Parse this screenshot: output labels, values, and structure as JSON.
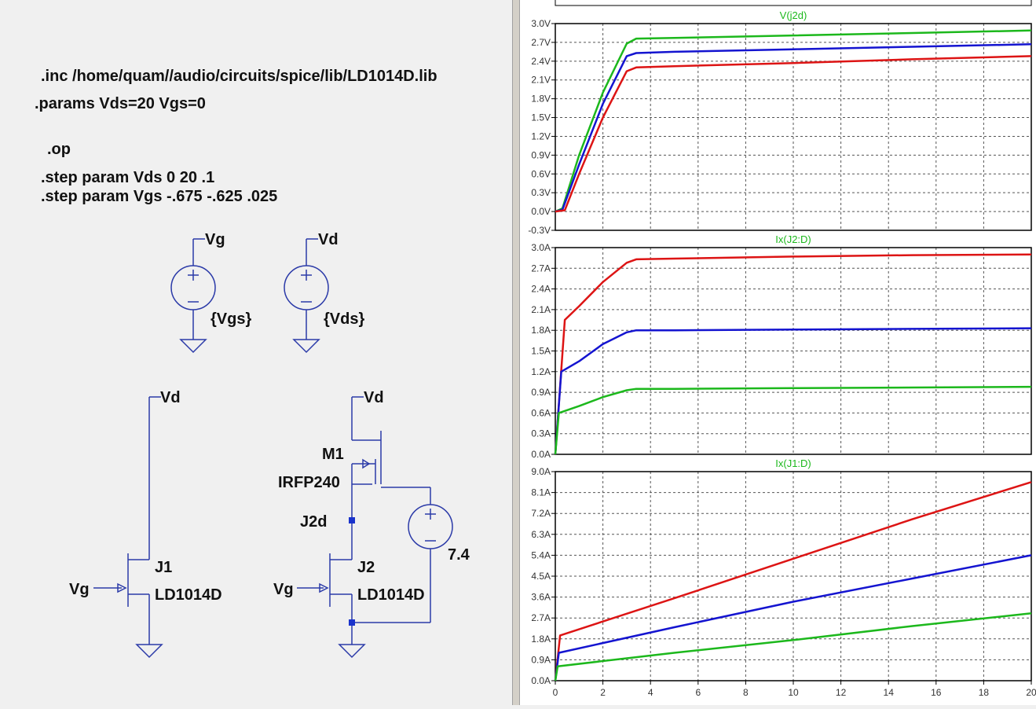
{
  "schematic": {
    "directives": [
      ".inc /home/quam//audio/circuits/spice/lib/LD1014D.lib",
      ".params Vds=20 Vgs=0",
      ".op",
      ".step param Vds 0 20 .1",
      ".step param Vgs -.675 -.625 .025"
    ],
    "labels": {
      "vg_net_top": "Vg",
      "vd_net_top": "Vd",
      "vgs_value": "{Vgs}",
      "vds_value": "{Vds}",
      "j1_vd": "Vd",
      "j1_name": "J1",
      "j1_model": "LD1014D",
      "j1_vg": "Vg",
      "m1_vd": "Vd",
      "m1_name": "M1",
      "m1_model": "IRFP240",
      "j2d_label": "J2d",
      "j2_name": "J2",
      "j2_model": "LD1014D",
      "j2_vg": "Vg",
      "source_value": "7.4"
    },
    "colors": {
      "wire": "#2b3aa8",
      "text": "#111111",
      "junction": "#1a33cc"
    }
  },
  "chart_data": [
    {
      "type": "line",
      "title": "V(j2d)",
      "title_color": "#1cb81c",
      "ylim": [
        -0.3,
        3.0
      ],
      "yticks": [
        "3.0V",
        "2.7V",
        "2.4V",
        "2.1V",
        "1.8V",
        "1.5V",
        "1.2V",
        "0.9V",
        "0.6V",
        "0.3V",
        "0.0V",
        "-0.3V"
      ],
      "ytick_values": [
        3.0,
        2.7,
        2.4,
        2.1,
        1.8,
        1.5,
        1.2,
        0.9,
        0.6,
        0.3,
        0.0,
        -0.3
      ],
      "xlim": [
        0,
        20
      ],
      "grid": true,
      "series": [
        {
          "color": "#1cb81c",
          "x": [
            0,
            0.3,
            1,
            2,
            3,
            3.4,
            5,
            10,
            15,
            20
          ],
          "y": [
            0,
            0.05,
            0.9,
            1.9,
            2.68,
            2.76,
            2.77,
            2.81,
            2.85,
            2.89
          ]
        },
        {
          "color": "#1414d0",
          "x": [
            0,
            0.3,
            1,
            2,
            3,
            3.4,
            5,
            10,
            15,
            20
          ],
          "y": [
            0,
            0.03,
            0.75,
            1.72,
            2.48,
            2.53,
            2.55,
            2.59,
            2.63,
            2.67
          ]
        },
        {
          "color": "#dd1414",
          "x": [
            0,
            0.4,
            1,
            2,
            3,
            3.4,
            5,
            10,
            15,
            20
          ],
          "y": [
            0,
            0.02,
            0.6,
            1.5,
            2.24,
            2.3,
            2.32,
            2.37,
            2.43,
            2.48
          ]
        }
      ]
    },
    {
      "type": "line",
      "title": "Ix(J2:D)",
      "title_color": "#1cb81c",
      "ylim": [
        0.0,
        3.0
      ],
      "yticks": [
        "3.0A",
        "2.7A",
        "2.4A",
        "2.1A",
        "1.8A",
        "1.5A",
        "1.2A",
        "0.9A",
        "0.6A",
        "0.3A",
        "0.0A"
      ],
      "ytick_values": [
        3.0,
        2.7,
        2.4,
        2.1,
        1.8,
        1.5,
        1.2,
        0.9,
        0.6,
        0.3,
        0.0
      ],
      "xlim": [
        0,
        20
      ],
      "grid": true,
      "series": [
        {
          "color": "#dd1414",
          "x": [
            0,
            0.4,
            1,
            2,
            3,
            3.4,
            5,
            10,
            15,
            20
          ],
          "y": [
            0,
            1.95,
            2.15,
            2.5,
            2.78,
            2.83,
            2.84,
            2.87,
            2.89,
            2.9
          ]
        },
        {
          "color": "#1414d0",
          "x": [
            0,
            0.25,
            1,
            2,
            3,
            3.4,
            5,
            10,
            15,
            20
          ],
          "y": [
            0,
            1.2,
            1.35,
            1.6,
            1.77,
            1.8,
            1.8,
            1.81,
            1.82,
            1.83
          ]
        },
        {
          "color": "#1cb81c",
          "x": [
            0,
            0.15,
            1,
            2,
            3,
            3.4,
            5,
            10,
            15,
            20
          ],
          "y": [
            0,
            0.6,
            0.7,
            0.83,
            0.93,
            0.95,
            0.95,
            0.96,
            0.97,
            0.98
          ]
        }
      ]
    },
    {
      "type": "line",
      "title": "Ix(J1:D)",
      "title_color": "#1cb81c",
      "ylim": [
        0.0,
        9.0
      ],
      "yticks": [
        "9.0A",
        "8.1A",
        "7.2A",
        "6.3A",
        "5.4A",
        "4.5A",
        "3.6A",
        "2.7A",
        "1.8A",
        "0.9A",
        "0.0A"
      ],
      "ytick_values": [
        9.0,
        8.1,
        7.2,
        6.3,
        5.4,
        4.5,
        3.6,
        2.7,
        1.8,
        0.9,
        0.0
      ],
      "xlim": [
        0,
        20
      ],
      "xticks": [
        "0",
        "2",
        "4",
        "6",
        "8",
        "10",
        "12",
        "14",
        "16",
        "18",
        "20"
      ],
      "grid": true,
      "series": [
        {
          "color": "#dd1414",
          "x": [
            0,
            0.2,
            5,
            10,
            15,
            20
          ],
          "y": [
            0,
            1.95,
            3.55,
            5.25,
            6.95,
            8.55
          ]
        },
        {
          "color": "#1414d0",
          "x": [
            0,
            0.15,
            5,
            10,
            15,
            20
          ],
          "y": [
            0,
            1.2,
            2.3,
            3.4,
            4.4,
            5.4
          ]
        },
        {
          "color": "#1cb81c",
          "x": [
            0,
            0.1,
            5,
            10,
            15,
            20
          ],
          "y": [
            0,
            0.62,
            1.2,
            1.75,
            2.35,
            2.9
          ]
        }
      ]
    }
  ]
}
